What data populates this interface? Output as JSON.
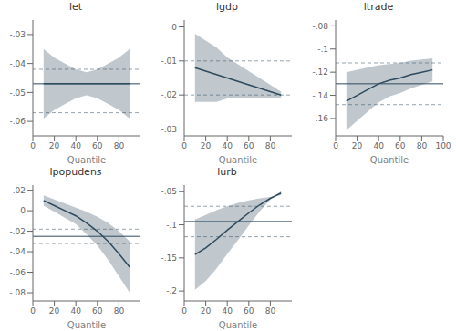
{
  "chart_data": [
    {
      "type": "line",
      "title": "let",
      "xlabel": "Quantile",
      "color": "#2d4a5e",
      "grid": false,
      "x": [
        10,
        20,
        30,
        40,
        50,
        60,
        70,
        80,
        90
      ],
      "values": [
        -0.047,
        -0.047,
        -0.047,
        -0.047,
        -0.047,
        -0.047,
        -0.047,
        -0.047,
        -0.047
      ],
      "ci_upper": [
        -0.035,
        -0.038,
        -0.04,
        -0.042,
        -0.043,
        -0.042,
        -0.04,
        -0.038,
        -0.035
      ],
      "ci_lower": [
        -0.059,
        -0.056,
        -0.054,
        -0.052,
        -0.051,
        -0.052,
        -0.054,
        -0.056,
        -0.059
      ],
      "ols_coef": -0.047,
      "ols_upper": -0.042,
      "ols_lower": -0.057,
      "xlim": [
        0,
        100
      ],
      "xticks": [
        0,
        20,
        40,
        60,
        80
      ],
      "ylim": [
        -0.065,
        -0.025
      ],
      "yticks": [
        {
          "value": -0.06,
          "label": "-.06"
        },
        {
          "value": -0.05,
          "label": "-.05"
        },
        {
          "value": -0.04,
          "label": "-.04"
        },
        {
          "value": -0.03,
          "label": "-.03"
        }
      ]
    },
    {
      "type": "line",
      "title": "lgdp",
      "xlabel": "Quantile",
      "color": "#2d4a5e",
      "grid": false,
      "x": [
        10,
        20,
        30,
        40,
        50,
        60,
        70,
        80,
        90
      ],
      "values": [
        -0.012,
        -0.013,
        -0.014,
        -0.015,
        -0.016,
        -0.017,
        -0.018,
        -0.019,
        -0.02
      ],
      "ci_upper": [
        -0.002,
        -0.004,
        -0.006,
        -0.009,
        -0.011,
        -0.013,
        -0.015,
        -0.017,
        -0.019
      ],
      "ci_lower": [
        -0.022,
        -0.022,
        -0.022,
        -0.021,
        -0.021,
        -0.021,
        -0.021,
        -0.021,
        -0.021
      ],
      "ols_coef": -0.015,
      "ols_upper": -0.01,
      "ols_lower": -0.02,
      "xlim": [
        0,
        100
      ],
      "xticks": [
        0,
        20,
        40,
        60,
        80
      ],
      "ylim": [
        -0.032,
        0.002
      ],
      "yticks": [
        {
          "value": -0.03,
          "label": "-.03"
        },
        {
          "value": -0.02,
          "label": "-.02"
        },
        {
          "value": -0.01,
          "label": "-.01"
        },
        0
      ]
    },
    {
      "type": "line",
      "title": "ltrade",
      "xlabel": "Quantile",
      "color": "#2d4a5e",
      "grid": false,
      "x": [
        10,
        20,
        30,
        40,
        50,
        60,
        70,
        80,
        90
      ],
      "values": [
        -0.145,
        -0.14,
        -0.135,
        -0.13,
        -0.127,
        -0.125,
        -0.122,
        -0.12,
        -0.118
      ],
      "ci_upper": [
        -0.12,
        -0.118,
        -0.116,
        -0.114,
        -0.113,
        -0.112,
        -0.11,
        -0.109,
        -0.108
      ],
      "ci_lower": [
        -0.17,
        -0.162,
        -0.154,
        -0.146,
        -0.141,
        -0.138,
        -0.134,
        -0.131,
        -0.128
      ],
      "ols_coef": -0.13,
      "ols_upper": -0.112,
      "ols_lower": -0.148,
      "xlim": [
        0,
        100
      ],
      "xticks": [
        0,
        20,
        40,
        60,
        80,
        100
      ],
      "ylim": [
        -0.175,
        -0.075
      ],
      "yticks": [
        {
          "value": -0.16,
          "label": "-.16"
        },
        {
          "value": -0.14,
          "label": "-.14"
        },
        {
          "value": -0.12,
          "label": "-.12"
        },
        {
          "value": -0.1,
          "label": "-.1"
        },
        {
          "value": -0.08,
          "label": "-.08"
        }
      ]
    },
    {
      "type": "line",
      "title": "lpopudens",
      "xlabel": "Quantile",
      "color": "#2d4a5e",
      "grid": false,
      "x": [
        10,
        20,
        30,
        40,
        50,
        60,
        70,
        80,
        90
      ],
      "values": [
        0.01,
        0.005,
        0.0,
        -0.005,
        -0.012,
        -0.02,
        -0.03,
        -0.042,
        -0.055
      ],
      "ci_upper": [
        0.015,
        0.011,
        0.007,
        0.003,
        -0.001,
        -0.006,
        -0.012,
        -0.02,
        -0.03
      ],
      "ci_lower": [
        0.005,
        -0.001,
        -0.007,
        -0.013,
        -0.023,
        -0.034,
        -0.048,
        -0.064,
        -0.08
      ],
      "ols_coef": -0.025,
      "ols_upper": -0.018,
      "ols_lower": -0.032,
      "xlim": [
        0,
        100
      ],
      "xticks": [
        0,
        20,
        40,
        60,
        80
      ],
      "ylim": [
        -0.088,
        0.025
      ],
      "yticks": [
        {
          "value": -0.08,
          "label": "-.08"
        },
        {
          "value": -0.06,
          "label": "-.06"
        },
        {
          "value": -0.04,
          "label": "-.04"
        },
        {
          "value": -0.02,
          "label": "-.02"
        },
        0,
        {
          "value": 0.02,
          "label": ".02"
        }
      ]
    },
    {
      "type": "line",
      "title": "lurb",
      "xlabel": "Quantile",
      "color": "#2d4a5e",
      "grid": false,
      "x": [
        10,
        20,
        30,
        40,
        50,
        60,
        70,
        80,
        90
      ],
      "values": [
        -0.145,
        -0.135,
        -0.122,
        -0.108,
        -0.095,
        -0.082,
        -0.07,
        -0.06,
        -0.052
      ],
      "ci_upper": [
        -0.092,
        -0.085,
        -0.078,
        -0.072,
        -0.067,
        -0.063,
        -0.06,
        -0.058,
        -0.055
      ],
      "ci_lower": [
        -0.198,
        -0.185,
        -0.166,
        -0.144,
        -0.123,
        -0.101,
        -0.08,
        -0.062,
        -0.049
      ],
      "ols_coef": -0.095,
      "ols_upper": -0.072,
      "ols_lower": -0.118,
      "xlim": [
        0,
        100
      ],
      "xticks": [
        0,
        20,
        40,
        60,
        80
      ],
      "ylim": [
        -0.215,
        -0.04
      ],
      "yticks": [
        {
          "value": -0.2,
          "label": "-.2"
        },
        {
          "value": -0.15,
          "label": "-.15"
        },
        {
          "value": -0.1,
          "label": "-.1"
        },
        {
          "value": -0.05,
          "label": "-.05"
        }
      ]
    }
  ]
}
